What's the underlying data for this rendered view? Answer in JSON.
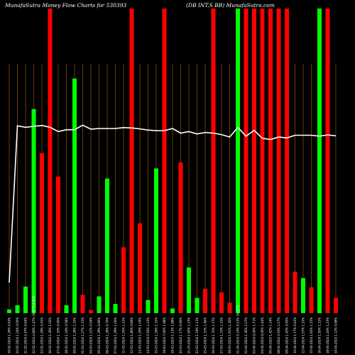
{
  "header": {
    "left": "MunafaSutra  Money Flow  Charts for 530393",
    "right": "(DB INT.S BB) MunafaSutra.com"
  },
  "colors": {
    "background": "#000000",
    "grid": "#b8620a",
    "up": "#00ff00",
    "down": "#ff0000",
    "price_line": "#ffffff"
  },
  "chart_data": {
    "type": "bar",
    "grid": true,
    "ylim": [
      0,
      100
    ],
    "bars": [
      {
        "date": "19 Feb 2024",
        "value": 1.2,
        "dir": "up"
      },
      {
        "date": "20 Feb 2024",
        "value": 2.6,
        "dir": "up"
      },
      {
        "date": "21 Feb 2024",
        "value": 8.7,
        "dir": "up"
      },
      {
        "date": "22 Feb 2024",
        "value": 67.0,
        "dir": "up"
      },
      {
        "date": "23 Feb 2024",
        "value": 52.5,
        "dir": "down"
      },
      {
        "date": "26 Feb 2024",
        "value": 100,
        "dir": "down"
      },
      {
        "date": "27 Feb 2024",
        "value": 44.8,
        "dir": "down"
      },
      {
        "date": "28 Feb 2024",
        "value": 2.6,
        "dir": "up"
      },
      {
        "date": "29 Feb 2024",
        "value": 77.0,
        "dir": "up"
      },
      {
        "date": "01 Mar 2024",
        "value": 6.0,
        "dir": "down"
      },
      {
        "date": "04 Mar 2024",
        "value": 1.0,
        "dir": "down"
      },
      {
        "date": "05 Mar 2024",
        "value": 5.5,
        "dir": "up"
      },
      {
        "date": "06 Mar 2024",
        "value": 44.2,
        "dir": "up"
      },
      {
        "date": "07 Mar 2024",
        "value": 3.0,
        "dir": "up"
      },
      {
        "date": "11 Mar 2024",
        "value": 21.6,
        "dir": "down"
      },
      {
        "date": "12 Mar 2024",
        "value": 100,
        "dir": "down"
      },
      {
        "date": "13 Mar 2024",
        "value": 29.5,
        "dir": "down"
      },
      {
        "date": "14 Mar 2024",
        "value": 4.3,
        "dir": "up"
      },
      {
        "date": "15 Mar 2024",
        "value": 47.5,
        "dir": "up"
      },
      {
        "date": "18 Mar 2024",
        "value": 100,
        "dir": "down"
      },
      {
        "date": "19 Mar 2024",
        "value": 1.5,
        "dir": "up"
      },
      {
        "date": "20 Mar 2024",
        "value": 49.5,
        "dir": "down"
      },
      {
        "date": "21 Mar 2024",
        "value": 15.0,
        "dir": "up"
      },
      {
        "date": "22 Mar 2024",
        "value": 5.0,
        "dir": "up"
      },
      {
        "date": "25 Mar 2024",
        "value": 8.0,
        "dir": "down"
      },
      {
        "date": "26 Mar 2024",
        "value": 100,
        "dir": "down"
      },
      {
        "date": "27 Mar 2024",
        "value": 6.8,
        "dir": "down"
      },
      {
        "date": "28 Mar 2024",
        "value": 3.4,
        "dir": "down"
      },
      {
        "date": "01 Apr 2024",
        "value": 100,
        "dir": "up"
      },
      {
        "date": "02 Apr 2024",
        "value": 100,
        "dir": "down"
      },
      {
        "date": "03 Apr 2024",
        "value": 100,
        "dir": "down"
      },
      {
        "date": "04 Apr 2024",
        "value": 100,
        "dir": "down"
      },
      {
        "date": "05 Apr 2024",
        "value": 100,
        "dir": "down"
      },
      {
        "date": "08 Apr 2024",
        "value": 100,
        "dir": "down"
      },
      {
        "date": "09 Apr 2024",
        "value": 100,
        "dir": "down"
      },
      {
        "date": "10 Apr 2024",
        "value": 13.6,
        "dir": "down"
      },
      {
        "date": "12 Apr 2024",
        "value": 11.5,
        "dir": "up"
      },
      {
        "date": "15 Apr 2024",
        "value": 8.5,
        "dir": "down"
      },
      {
        "date": "16 Apr 2024",
        "value": 100,
        "dir": "up"
      },
      {
        "date": "18 Apr 2024",
        "value": 100,
        "dir": "down"
      },
      {
        "date": "19 Apr 2024",
        "value": 5.0,
        "dir": "down"
      }
    ],
    "price_line": [
      10,
      61.5,
      61.0,
      61.3,
      61.6,
      61.0,
      59.6,
      60.2,
      60.2,
      61.7,
      60.4,
      60.6,
      60.6,
      60.6,
      60.9,
      60.8,
      60.5,
      60.1,
      59.9,
      59.9,
      60.6,
      59.1,
      59.6,
      58.8,
      59.3,
      59.1,
      58.6,
      57.8,
      61.0,
      58.1,
      60.0,
      57.4,
      57.0,
      57.8,
      57.5,
      58.4,
      58.4,
      58.4,
      58.1,
      58.5,
      58.2
    ]
  },
  "x_labels": [
    "19-02-2024 1.29% 0.43%",
    "20-02-2024 1.24% 0.50%",
    "21-02-2024 2.47% 0.64%",
    "22-02-2024 2.84% 1.47% 24.97% 8.40%",
    "23-02-2024 1.29% 5.43%",
    "26-02-2024 1.26% 1.00%",
    "27-02-2024 1.33% 0.95%",
    "28-02-2024 1.24% 0.58%",
    "29-02-2024 1.28% 1.20%",
    "01-03-2024 1.27% 1.15%",
    "04-03-2024 1.21% 0.54%",
    "05-03-2024 1.29% 0.96%",
    "06-03-2024 1.28% 0.70%",
    "07-03-2024 1.29% 1.00%",
    "11-03-2024 1.25% 1.12%",
    "12-03-2024 1.80% 0.89%",
    "13-03-2024 1.25% 1.09%",
    "14-03-2024 0.54% 1.23%",
    "15-03-2024 1.18% 1.10%",
    "18-03-2024 7.00% 1.98%",
    "19-03-2024 1.13% 1.88%",
    "20-03-2024 1.17% 0.96%",
    "21-03-2024 1.92% 1.23%",
    "22-03-2024 1.19% 1.11%",
    "25-03-2024 1.31% 1.46%",
    "26-03-2024 1.72% 1.37%",
    "27-03-2024 1.15% 1.10%",
    "28-03-2024 1.61% 1.30%",
    "01-04-2024 5.19% 9.13% 16.32%",
    "02-04-2024 1.36% 1.07%",
    "03-04-2024 0.00% 1.71%",
    "04-04-2024 0.00% 1.44%",
    "05-04-2024 1.42% 1.14%",
    "08-04-2024 3.53% 1.57%",
    "09-04-2024 1.43% 0.95%",
    "10-04-2024 1.17% 0.43%",
    "12-04-2024 1.57% 1.10%",
    "15-04-2024 1.62% 1.15%",
    "16-04-2024 1.55% 1.22%",
    "18-04-2024 1.43% 1.23%",
    "19-04-2024 1.12% 0.98%"
  ]
}
